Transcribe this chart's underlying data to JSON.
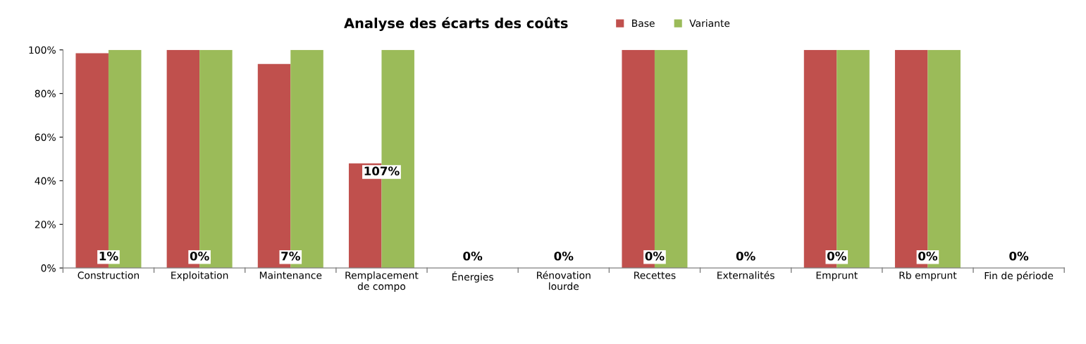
{
  "chart_data": {
    "type": "bar",
    "title": "Analyse des écarts des coûts",
    "categories": [
      "Construction",
      "Exploitation",
      "Maintenance",
      "Remplacement\nde compo",
      "Énergies",
      "Rénovation\nlourde",
      "Recettes",
      "Externalités",
      "Emprunt",
      "Rb emprunt",
      "Fin de période"
    ],
    "series": [
      {
        "name": "Base",
        "color": "#c0504d",
        "values": [
          98.5,
          100,
          93.5,
          48,
          0,
          0,
          100,
          0,
          100,
          100,
          0
        ]
      },
      {
        "name": "Variante",
        "color": "#9bbb59",
        "values": [
          100,
          100,
          100,
          100,
          0,
          0,
          100,
          0,
          100,
          100,
          0
        ]
      }
    ],
    "ylim": [
      0,
      100
    ],
    "yticks": [
      {
        "value": 0,
        "label": "0%"
      },
      {
        "value": 20,
        "label": "20%"
      },
      {
        "value": 40,
        "label": "40%"
      },
      {
        "value": 60,
        "label": "60%"
      },
      {
        "value": 80,
        "label": "80%"
      },
      {
        "value": 100,
        "label": "100%"
      }
    ],
    "grid": false,
    "legend": "top",
    "annotations": [
      {
        "text": "1%",
        "x": "Construction",
        "y": 5
      },
      {
        "text": "0%",
        "x": "Exploitation",
        "y": 5
      },
      {
        "text": "7%",
        "x": "Maintenance",
        "y": 5
      },
      {
        "text": "107%",
        "x": "Remplacement\nde compo",
        "y": 44
      },
      "0%",
      "0%",
      {
        "text": "0%",
        "x": "Recettes",
        "y": 5
      },
      "0%",
      {
        "text": "0%",
        "x": "Emprunt",
        "y": 5
      },
      {
        "text": "0%",
        "x": "Rb emprunt",
        "y": 5
      },
      "0%"
    ]
  }
}
